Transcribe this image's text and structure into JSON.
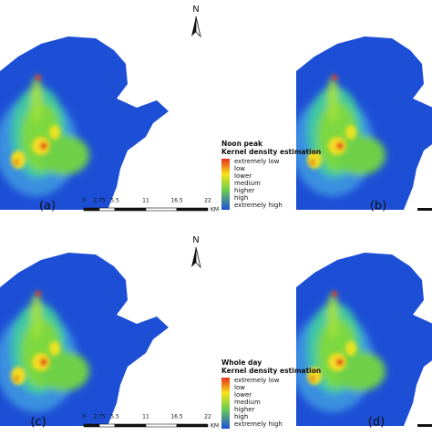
{
  "panels": [
    "(a)",
    "(b)",
    "(c)",
    "(d)"
  ],
  "north_arrows": [
    "N",
    "N"
  ],
  "legends": [
    {
      "title": "Noon peak",
      "subtitle": "Kernel density estimation",
      "items": [
        "extremely low",
        "low",
        "lower",
        "medium",
        "higher",
        "high",
        "extremely high"
      ]
    },
    {
      "title": "Whole day",
      "subtitle": "Kernel density estimation",
      "items": [
        "extremely low",
        "low",
        "lower",
        "medium",
        "higher",
        "high",
        "extremely high"
      ]
    }
  ],
  "scale_bars": [
    {
      "ticks": [
        "0",
        "2.75",
        "5.5",
        "11",
        "16.5",
        "22"
      ],
      "unit": "KM"
    },
    {
      "ticks": [
        "0",
        "2.75",
        "5.5",
        "11",
        "16.5",
        "22"
      ],
      "unit": "KM"
    }
  ]
}
